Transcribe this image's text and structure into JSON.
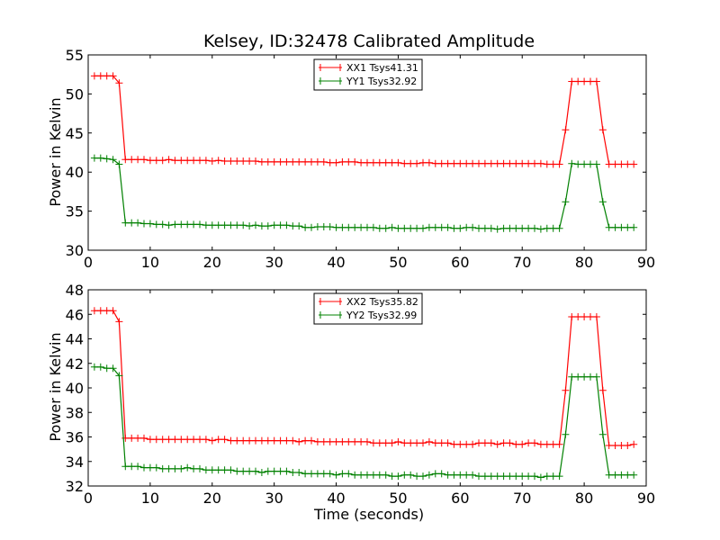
{
  "chart_data": [
    {
      "type": "line",
      "title": "Kelsey, ID:32478 Calibrated Amplitude",
      "xlabel": "",
      "ylabel": "Power in Kelvin",
      "xlim": [
        0,
        90
      ],
      "ylim": [
        30,
        55
      ],
      "xticks": [
        0,
        10,
        20,
        30,
        40,
        50,
        60,
        70,
        80,
        90
      ],
      "yticks": [
        30,
        35,
        40,
        45,
        50,
        55
      ],
      "grid": false,
      "legend_position": "top-center",
      "x": [
        1,
        2,
        3,
        4,
        5,
        6,
        7,
        8,
        9,
        10,
        11,
        12,
        13,
        14,
        15,
        16,
        17,
        18,
        19,
        20,
        21,
        22,
        23,
        24,
        25,
        26,
        27,
        28,
        29,
        30,
        31,
        32,
        33,
        34,
        35,
        36,
        37,
        38,
        39,
        40,
        41,
        42,
        43,
        44,
        45,
        46,
        47,
        48,
        49,
        50,
        51,
        52,
        53,
        54,
        55,
        56,
        57,
        58,
        59,
        60,
        61,
        62,
        63,
        64,
        65,
        66,
        67,
        68,
        69,
        70,
        71,
        72,
        73,
        74,
        75,
        76,
        77,
        78,
        79,
        80,
        81,
        82,
        83,
        84,
        85,
        86,
        87,
        88
      ],
      "series": [
        {
          "name": "XX1 Tsys41.31",
          "color": "#ff0000",
          "values": [
            52.3,
            52.3,
            52.3,
            52.3,
            51.4,
            41.6,
            41.6,
            41.6,
            41.6,
            41.5,
            41.5,
            41.5,
            41.6,
            41.5,
            41.5,
            41.5,
            41.5,
            41.5,
            41.5,
            41.4,
            41.5,
            41.4,
            41.4,
            41.4,
            41.4,
            41.4,
            41.4,
            41.3,
            41.3,
            41.3,
            41.3,
            41.3,
            41.3,
            41.3,
            41.3,
            41.3,
            41.3,
            41.3,
            41.2,
            41.2,
            41.3,
            41.3,
            41.3,
            41.2,
            41.2,
            41.2,
            41.2,
            41.2,
            41.2,
            41.2,
            41.1,
            41.1,
            41.1,
            41.2,
            41.2,
            41.1,
            41.1,
            41.1,
            41.1,
            41.1,
            41.1,
            41.1,
            41.1,
            41.1,
            41.1,
            41.1,
            41.1,
            41.1,
            41.1,
            41.1,
            41.1,
            41.1,
            41.1,
            41.0,
            41.0,
            41.0,
            45.4,
            51.6,
            51.6,
            51.6,
            51.6,
            51.6,
            45.4,
            41.0,
            41.0,
            41.0,
            41.0,
            41.0
          ]
        },
        {
          "name": "YY1 Tsys32.92",
          "color": "#008000",
          "values": [
            41.8,
            41.8,
            41.7,
            41.6,
            41.0,
            33.5,
            33.5,
            33.5,
            33.4,
            33.4,
            33.3,
            33.3,
            33.2,
            33.3,
            33.3,
            33.3,
            33.3,
            33.3,
            33.2,
            33.2,
            33.2,
            33.2,
            33.2,
            33.2,
            33.2,
            33.1,
            33.2,
            33.1,
            33.1,
            33.2,
            33.2,
            33.2,
            33.1,
            33.1,
            32.9,
            32.9,
            33.0,
            33.0,
            33.0,
            32.9,
            32.9,
            32.9,
            32.9,
            32.9,
            32.9,
            32.9,
            32.8,
            32.8,
            32.9,
            32.8,
            32.8,
            32.8,
            32.8,
            32.8,
            32.9,
            32.9,
            32.9,
            32.9,
            32.8,
            32.8,
            32.9,
            32.9,
            32.8,
            32.8,
            32.8,
            32.7,
            32.8,
            32.8,
            32.8,
            32.8,
            32.8,
            32.8,
            32.7,
            32.8,
            32.8,
            32.8,
            36.2,
            41.1,
            41.0,
            41.0,
            41.0,
            41.0,
            36.2,
            32.9,
            32.9,
            32.9,
            32.9,
            32.9
          ]
        }
      ]
    },
    {
      "type": "line",
      "title": "",
      "xlabel": "Time (seconds)",
      "ylabel": "Power in Kelvin",
      "xlim": [
        0,
        90
      ],
      "ylim": [
        32,
        48
      ],
      "xticks": [
        0,
        10,
        20,
        30,
        40,
        50,
        60,
        70,
        80,
        90
      ],
      "yticks": [
        32,
        34,
        36,
        38,
        40,
        42,
        44,
        46,
        48
      ],
      "grid": false,
      "legend_position": "top-center",
      "x": [
        1,
        2,
        3,
        4,
        5,
        6,
        7,
        8,
        9,
        10,
        11,
        12,
        13,
        14,
        15,
        16,
        17,
        18,
        19,
        20,
        21,
        22,
        23,
        24,
        25,
        26,
        27,
        28,
        29,
        30,
        31,
        32,
        33,
        34,
        35,
        36,
        37,
        38,
        39,
        40,
        41,
        42,
        43,
        44,
        45,
        46,
        47,
        48,
        49,
        50,
        51,
        52,
        53,
        54,
        55,
        56,
        57,
        58,
        59,
        60,
        61,
        62,
        63,
        64,
        65,
        66,
        67,
        68,
        69,
        70,
        71,
        72,
        73,
        74,
        75,
        76,
        77,
        78,
        79,
        80,
        81,
        82,
        83,
        84,
        85,
        86,
        87,
        88
      ],
      "series": [
        {
          "name": "XX2 Tsys35.82",
          "color": "#ff0000",
          "values": [
            46.3,
            46.3,
            46.3,
            46.3,
            45.4,
            35.9,
            35.9,
            35.9,
            35.9,
            35.8,
            35.8,
            35.8,
            35.8,
            35.8,
            35.8,
            35.8,
            35.8,
            35.8,
            35.8,
            35.7,
            35.8,
            35.8,
            35.7,
            35.7,
            35.7,
            35.7,
            35.7,
            35.7,
            35.7,
            35.7,
            35.7,
            35.7,
            35.7,
            35.6,
            35.7,
            35.7,
            35.6,
            35.6,
            35.6,
            35.6,
            35.6,
            35.6,
            35.6,
            35.6,
            35.6,
            35.5,
            35.5,
            35.5,
            35.5,
            35.6,
            35.5,
            35.5,
            35.5,
            35.5,
            35.6,
            35.5,
            35.5,
            35.5,
            35.4,
            35.4,
            35.4,
            35.4,
            35.5,
            35.5,
            35.5,
            35.4,
            35.5,
            35.5,
            35.4,
            35.4,
            35.5,
            35.5,
            35.4,
            35.4,
            35.4,
            35.4,
            39.8,
            45.8,
            45.8,
            45.8,
            45.8,
            45.8,
            39.8,
            35.3,
            35.3,
            35.3,
            35.3,
            35.4
          ]
        },
        {
          "name": "YY2 Tsys32.99",
          "color": "#008000",
          "values": [
            41.7,
            41.7,
            41.6,
            41.6,
            41.0,
            33.6,
            33.6,
            33.6,
            33.5,
            33.5,
            33.5,
            33.4,
            33.4,
            33.4,
            33.4,
            33.5,
            33.4,
            33.4,
            33.3,
            33.3,
            33.3,
            33.3,
            33.3,
            33.2,
            33.2,
            33.2,
            33.2,
            33.1,
            33.2,
            33.2,
            33.2,
            33.2,
            33.1,
            33.1,
            33.0,
            33.0,
            33.0,
            33.0,
            33.0,
            32.9,
            33.0,
            33.0,
            32.9,
            32.9,
            32.9,
            32.9,
            32.9,
            32.9,
            32.8,
            32.8,
            32.9,
            32.9,
            32.8,
            32.8,
            32.9,
            33.0,
            33.0,
            32.9,
            32.9,
            32.9,
            32.9,
            32.9,
            32.8,
            32.8,
            32.8,
            32.8,
            32.8,
            32.8,
            32.8,
            32.8,
            32.8,
            32.8,
            32.7,
            32.8,
            32.8,
            32.8,
            36.2,
            40.9,
            40.9,
            40.9,
            40.9,
            40.9,
            36.2,
            32.9,
            32.9,
            32.9,
            32.9,
            32.9
          ]
        }
      ]
    }
  ]
}
